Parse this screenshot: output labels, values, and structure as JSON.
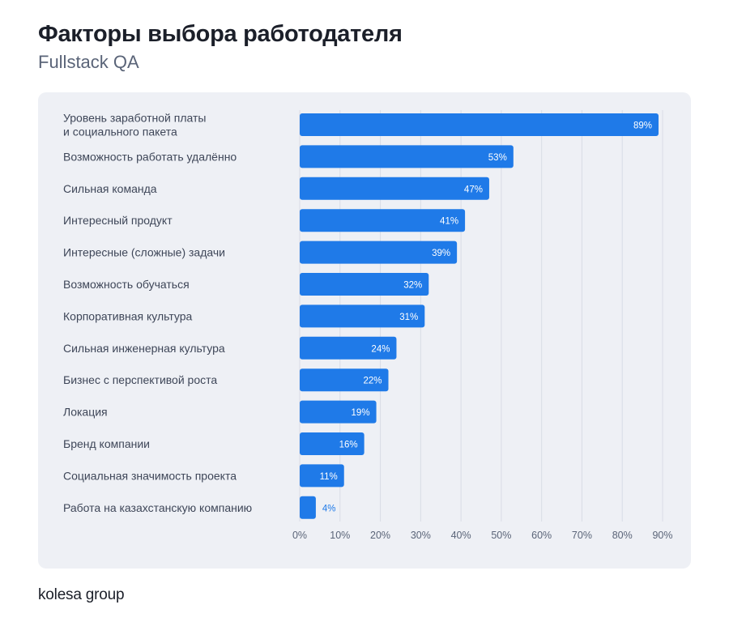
{
  "header": {
    "title": "Факторы выбора работодателя",
    "subtitle": "Fullstack QA"
  },
  "footer": {
    "logo_text": "kolesa group"
  },
  "colors": {
    "bar": "#1f7ae8",
    "bar_label_inside": "#ffffff",
    "bar_label_outside": "#1f7ae8",
    "panel_bg": "#eef0f5",
    "category_text": "#3e4658",
    "tick_text": "#5a6478",
    "grid": "#d9dde6"
  },
  "chart_data": {
    "type": "bar",
    "orientation": "horizontal",
    "title": "Факторы выбора работодателя",
    "subtitle": "Fullstack QA",
    "categories": [
      [
        "Уровень заработной платы",
        "и социального пакета"
      ],
      [
        "Возможность работать удалённо"
      ],
      [
        "Сильная команда"
      ],
      [
        "Интересный продукт"
      ],
      [
        "Интересные (сложные) задачи"
      ],
      [
        "Возможность обучаться"
      ],
      [
        "Корпоративная культура"
      ],
      [
        "Сильная инженерная культура"
      ],
      [
        "Бизнес с перспективой роста"
      ],
      [
        "Локация"
      ],
      [
        "Бренд компании"
      ],
      [
        "Социальная значимость проекта"
      ],
      [
        "Работа на казахстанскую компанию"
      ]
    ],
    "values": [
      89,
      53,
      47,
      41,
      39,
      32,
      31,
      24,
      22,
      19,
      16,
      11,
      4
    ],
    "value_labels": [
      "89%",
      "53%",
      "47%",
      "41%",
      "39%",
      "32%",
      "31%",
      "24%",
      "22%",
      "19%",
      "16%",
      "11%",
      "4%"
    ],
    "xlim": [
      0,
      90
    ],
    "xticks": [
      0,
      10,
      20,
      30,
      40,
      50,
      60,
      70,
      80,
      90
    ],
    "xtick_labels": [
      "0%",
      "10%",
      "20%",
      "30%",
      "40%",
      "50%",
      "60%",
      "70%",
      "80%",
      "90%"
    ],
    "grid": true,
    "legend": "none"
  }
}
